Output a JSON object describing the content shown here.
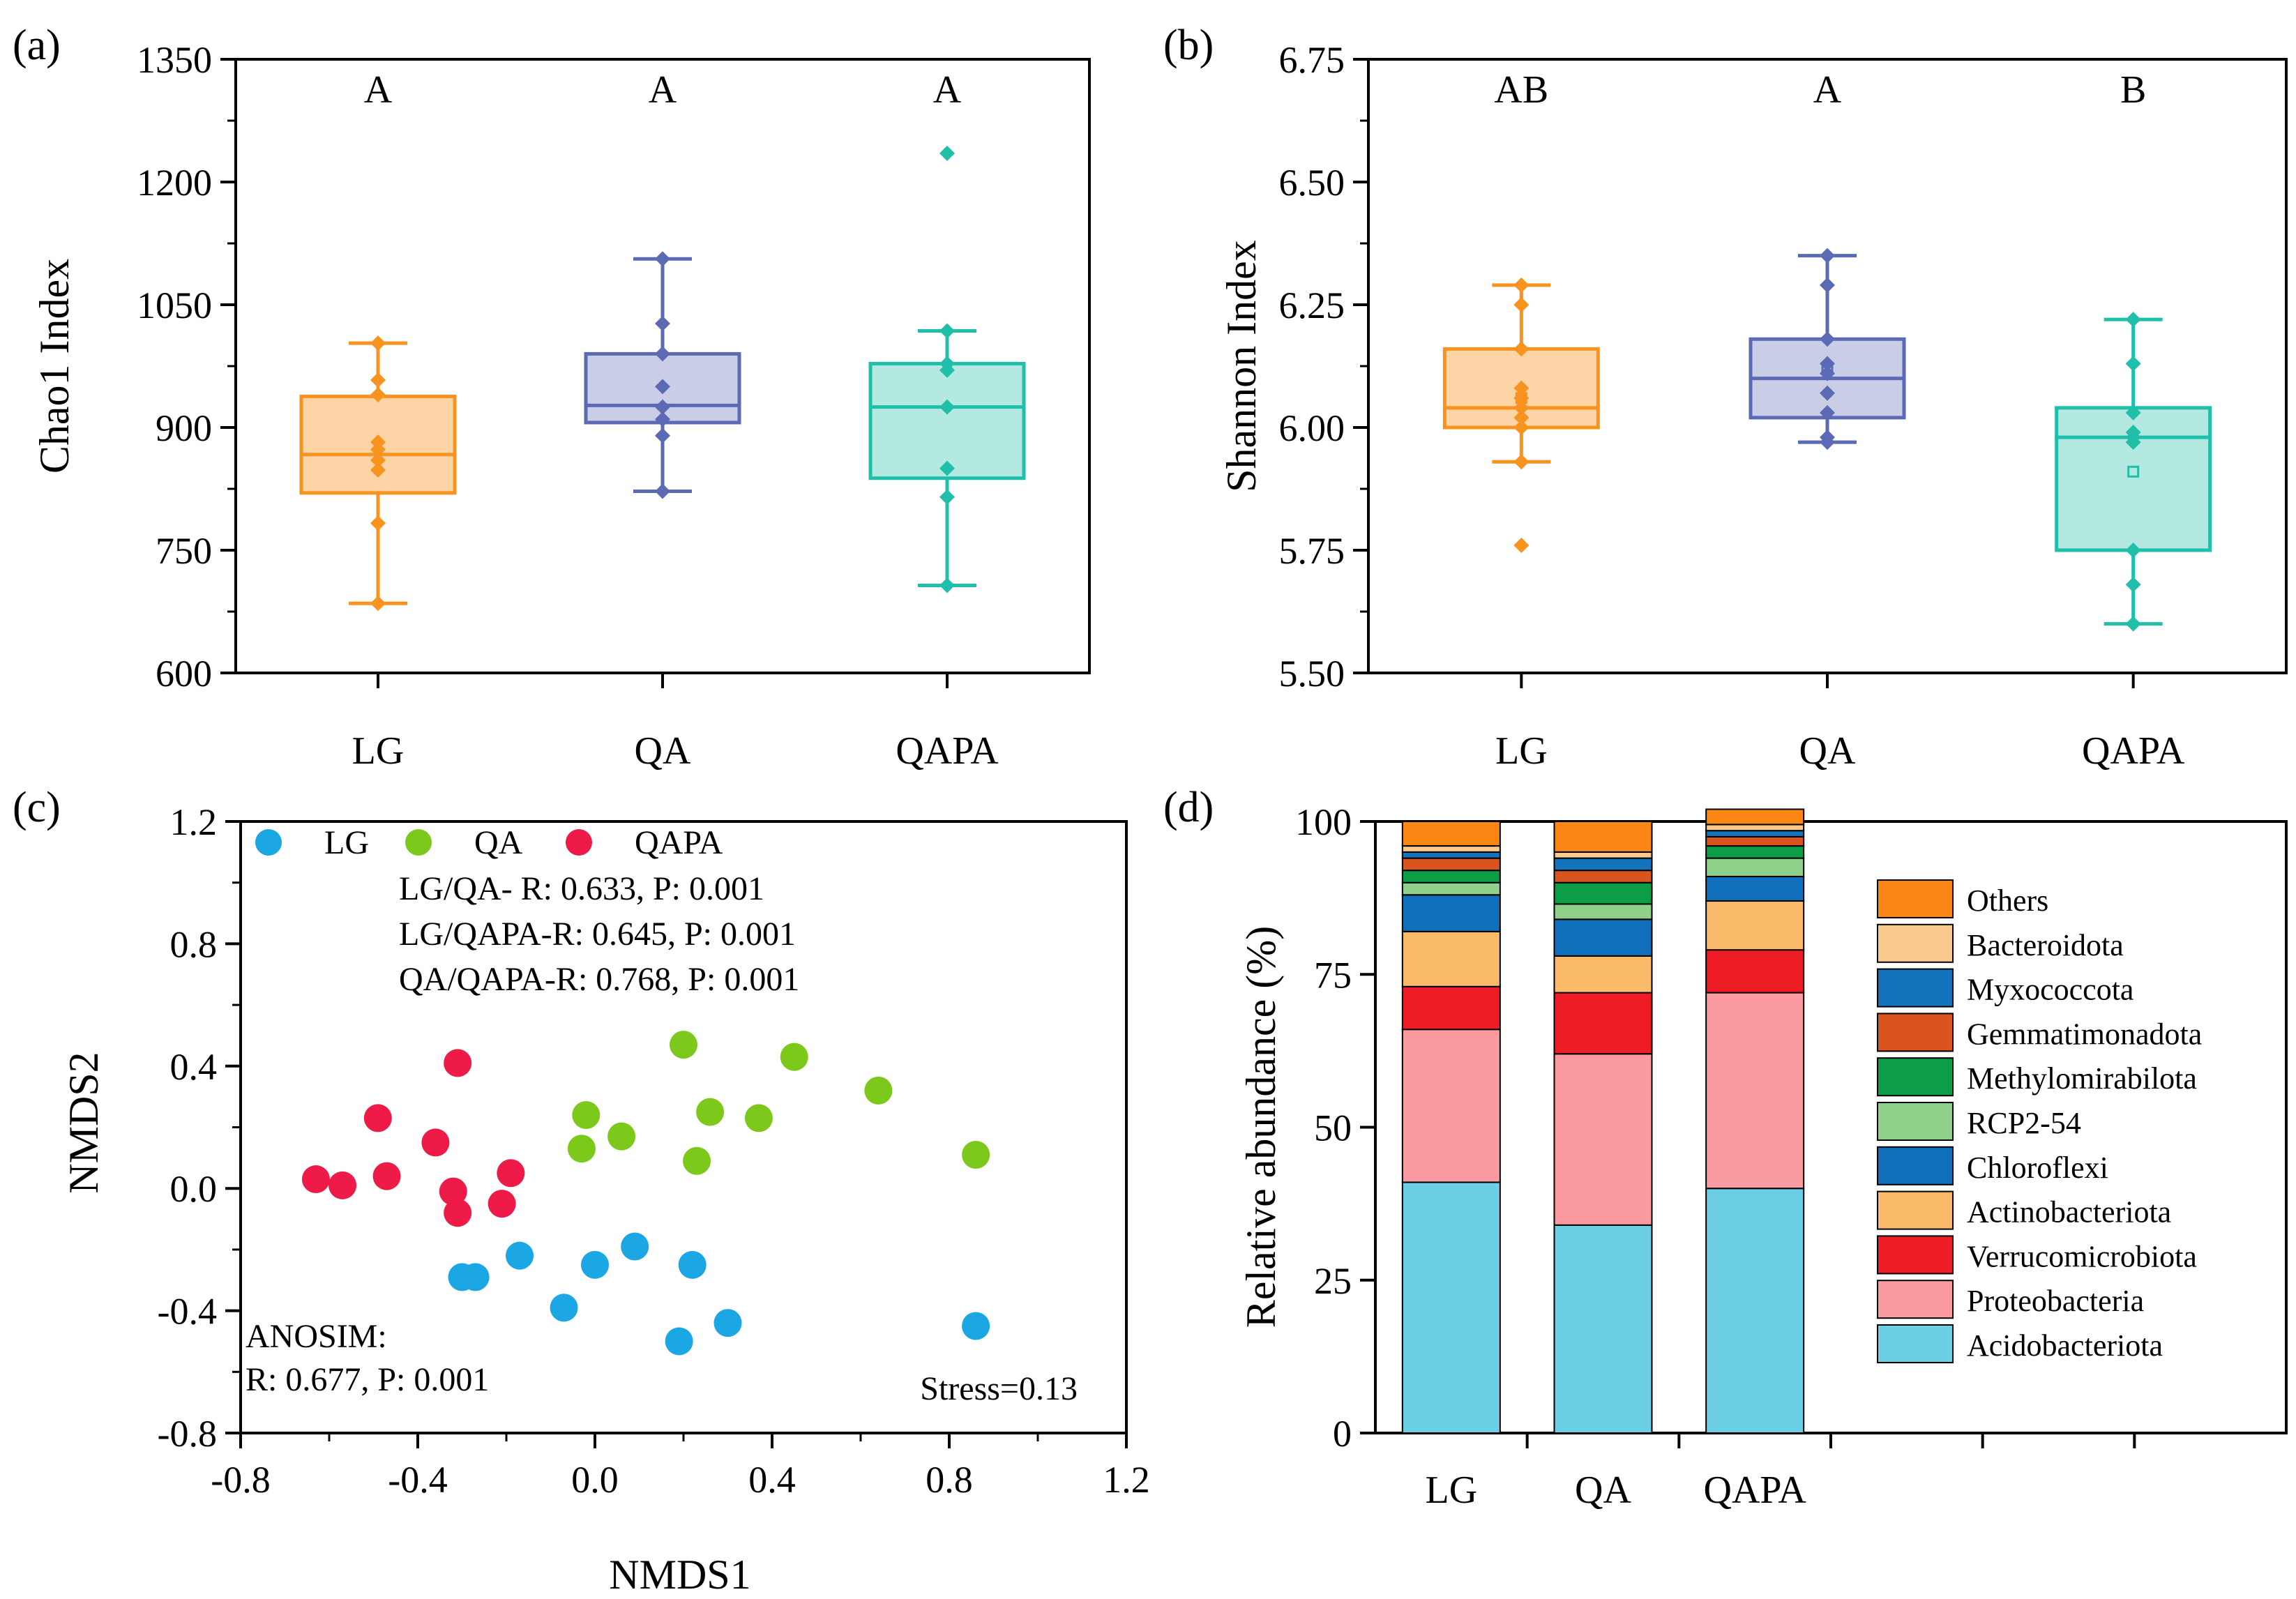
{
  "colors": {
    "LG": "#f7931e",
    "QA": "#5a6ab5",
    "QAPA": "#1fbfaa",
    "LG_fill": "#fdd4a6",
    "QA_fill": "#c9cde6",
    "QAPA_fill": "#b4e9e1",
    "nmds_LG": "#1aa7e4",
    "nmds_QA": "#7dc91b",
    "nmds_QAPA": "#ee1a47"
  },
  "chart_data": [
    {
      "panel": "(a)",
      "type": "box",
      "ylabel": "Chao1 Index",
      "ylim": [
        600,
        1350
      ],
      "yticks": [
        "600",
        "750",
        "900",
        "1050",
        "1200",
        "1350"
      ],
      "categories": [
        "LG",
        "QA",
        "QAPA"
      ],
      "letters": [
        "A",
        "A",
        "A"
      ],
      "boxes": [
        {
          "group": "LG",
          "q1": 820,
          "median": 867,
          "q3": 938,
          "whisker_low": 685,
          "whisker_high": 1003,
          "points": [
            685,
            783,
            848,
            860,
            873,
            882,
            940,
            958,
            1003
          ]
        },
        {
          "group": "QA",
          "q1": 906,
          "median": 927,
          "q3": 990,
          "whisker_low": 822,
          "whisker_high": 1106,
          "points": [
            822,
            890,
            910,
            925,
            950,
            990,
            1027,
            1106
          ]
        },
        {
          "group": "QAPA",
          "q1": 838,
          "median": 925,
          "q3": 978,
          "whisker_low": 707,
          "whisker_high": 1018,
          "points": [
            707,
            815,
            850,
            925,
            970,
            978,
            1018,
            1235
          ]
        }
      ]
    },
    {
      "panel": "(b)",
      "type": "box",
      "ylabel": "Shannon Index",
      "ylim": [
        5.5,
        6.75
      ],
      "yticks": [
        "5.50",
        "5.75",
        "6.00",
        "6.25",
        "6.50",
        "6.75"
      ],
      "categories": [
        "LG",
        "QA",
        "QAPA"
      ],
      "letters": [
        "AB",
        "A",
        "B"
      ],
      "boxes": [
        {
          "group": "LG",
          "q1": 6.0,
          "median": 6.04,
          "q3": 6.16,
          "whisker_low": 5.93,
          "whisker_high": 6.29,
          "mean": 6.06,
          "points": [
            5.76,
            5.93,
            6.0,
            6.02,
            6.04,
            6.06,
            6.08,
            6.16,
            6.25,
            6.29
          ]
        },
        {
          "group": "QA",
          "q1": 6.02,
          "median": 6.1,
          "q3": 6.18,
          "whisker_low": 5.97,
          "whisker_high": 6.35,
          "mean": 6.12,
          "points": [
            5.97,
            5.98,
            6.03,
            6.07,
            6.11,
            6.13,
            6.18,
            6.29,
            6.35
          ]
        },
        {
          "group": "QAPA",
          "q1": 5.75,
          "median": 5.98,
          "q3": 6.04,
          "whisker_low": 5.6,
          "whisker_high": 6.22,
          "mean": 5.91,
          "points": [
            5.6,
            5.68,
            5.75,
            5.97,
            5.98,
            5.99,
            6.03,
            6.13,
            6.22
          ]
        }
      ]
    },
    {
      "panel": "(c)",
      "type": "scatter",
      "xlabel": "NMDS1",
      "ylabel": "NMDS2",
      "xlim": [
        -0.8,
        1.2
      ],
      "ylim": [
        -0.8,
        1.2
      ],
      "xticks": [
        "-0.8",
        "-0.4",
        "0.0",
        "0.4",
        "0.8",
        "1.2"
      ],
      "yticks": [
        "-0.8",
        "-0.4",
        "0.0",
        "0.4",
        "0.8",
        "1.2"
      ],
      "legend": [
        "LG",
        "QA",
        "QAPA"
      ],
      "stats": [
        "LG/QA-    R: 0.633,  P: 0.001",
        "LG/QAPA-R: 0.645,  P: 0.001",
        "QA/QAPA-R: 0.768,  P: 0.001"
      ],
      "anosim": [
        "ANOSIM:",
        "R: 0.677,   P: 0.001"
      ],
      "stress": "Stress=0.13",
      "series": [
        {
          "name": "LG",
          "points": [
            [
              -0.17,
              -0.22
            ],
            [
              -0.3,
              -0.29
            ],
            [
              -0.27,
              -0.29
            ],
            [
              0.0,
              -0.25
            ],
            [
              0.09,
              -0.19
            ],
            [
              0.22,
              -0.25
            ],
            [
              -0.07,
              -0.39
            ],
            [
              0.3,
              -0.44
            ],
            [
              0.19,
              -0.5
            ],
            [
              0.86,
              -0.45
            ]
          ]
        },
        {
          "name": "QA",
          "points": [
            [
              0.2,
              0.47
            ],
            [
              0.45,
              0.43
            ],
            [
              0.64,
              0.32
            ],
            [
              -0.02,
              0.24
            ],
            [
              0.26,
              0.25
            ],
            [
              0.37,
              0.23
            ],
            [
              0.06,
              0.17
            ],
            [
              -0.03,
              0.13
            ],
            [
              0.23,
              0.09
            ],
            [
              0.86,
              0.11
            ]
          ]
        },
        {
          "name": "QAPA",
          "points": [
            [
              -0.31,
              0.41
            ],
            [
              -0.49,
              0.23
            ],
            [
              -0.36,
              0.15
            ],
            [
              -0.63,
              0.03
            ],
            [
              -0.57,
              0.01
            ],
            [
              -0.47,
              0.04
            ],
            [
              -0.32,
              -0.01
            ],
            [
              -0.31,
              -0.08
            ],
            [
              -0.19,
              0.05
            ],
            [
              -0.21,
              -0.05
            ]
          ]
        }
      ]
    },
    {
      "panel": "(d)",
      "type": "bar",
      "stacked": true,
      "ylabel": "Relative abundance (%)",
      "ylim": [
        0,
        100
      ],
      "yticks": [
        "0",
        "25",
        "50",
        "75",
        "100"
      ],
      "categories": [
        "LG",
        "QA",
        "QAPA"
      ],
      "series": [
        {
          "name": "Acidobacteriota",
          "color": "#6dcfe6",
          "values": [
            41,
            34,
            40
          ]
        },
        {
          "name": "Proteobacteria",
          "color": "#fb9aa0",
          "values": [
            25,
            28,
            32
          ]
        },
        {
          "name": "Verrucomicrobiota",
          "color": "#ee1c25",
          "values": [
            7,
            10,
            7
          ]
        },
        {
          "name": "Actinobacteriota",
          "color": "#fbb96a",
          "values": [
            9,
            6,
            8
          ]
        },
        {
          "name": "Chloroflexi",
          "color": "#0f6fba",
          "values": [
            6,
            6,
            4
          ]
        },
        {
          "name": "RCP2-54",
          "color": "#8fd18a",
          "values": [
            2,
            2.5,
            3
          ]
        },
        {
          "name": "Methylomirabilota",
          "color": "#0c9d47",
          "values": [
            2,
            3.5,
            2
          ]
        },
        {
          "name": "Gemmatimonadota",
          "color": "#d9541e",
          "values": [
            2,
            2,
            1.5
          ]
        },
        {
          "name": "Myxococcota",
          "color": "#1374bb",
          "values": [
            1,
            2,
            1
          ]
        },
        {
          "name": "Bacteroidota",
          "color": "#fcc98c",
          "values": [
            1,
            1,
            1
          ]
        },
        {
          "name": "Others",
          "color": "#fb8613",
          "values": [
            4,
            5,
            2.5
          ]
        }
      ]
    }
  ]
}
